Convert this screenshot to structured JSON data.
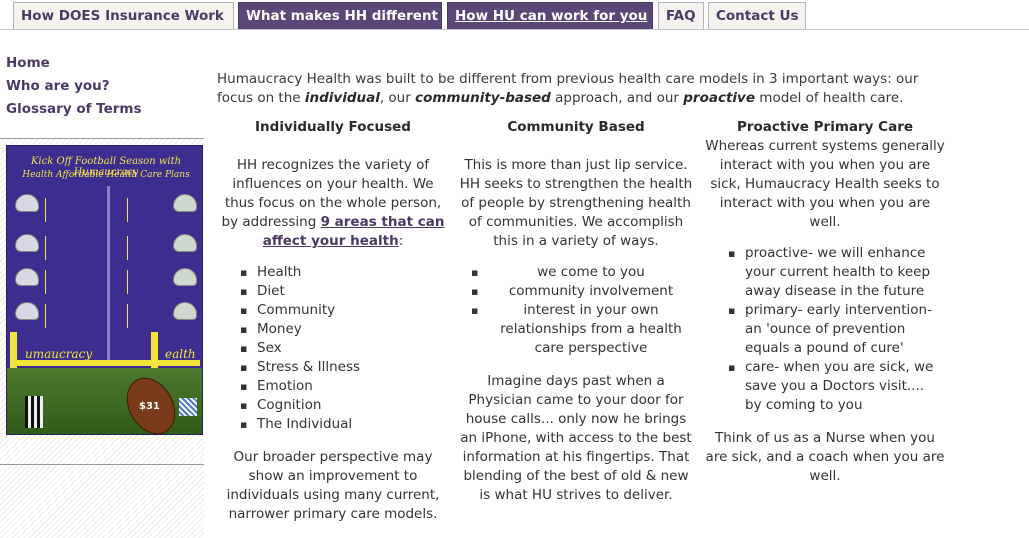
{
  "tabs": [
    {
      "label": "How DOES Insurance Work"
    },
    {
      "label": "What makes HH different"
    },
    {
      "label": "How HU can work for you"
    },
    {
      "label": "FAQ"
    },
    {
      "label": "Contact Us"
    }
  ],
  "sidebar": {
    "items": [
      {
        "label": "Home"
      },
      {
        "label": "Who are you?"
      },
      {
        "label": "Glossary of Terms"
      }
    ]
  },
  "flyer": {
    "headline": "Kick Off Football Season with Humaucracy",
    "subline": "Health Affordable Health Care Plans",
    "brand_left": "umaucracy",
    "brand_right": "ealth",
    "price": "$31"
  },
  "intro": {
    "part1": "Humaucracy Health was built to be different from previous health care models in 3 important ways: our focus on the ",
    "em1": "individual",
    "part2": ", our ",
    "em2": "community-based",
    "part3": " approach, and our ",
    "em3": "proactive",
    "part4": " model of health care."
  },
  "col1": {
    "heading": "Individually Focused",
    "para1_pre": "HH recognizes the variety of influences on your health.  We thus focus on the whole person, by addressing ",
    "link": "9 areas that can affect your health",
    "para1_post": ":",
    "items": [
      "Health",
      "Diet",
      "Community",
      "Money",
      "Sex",
      "Stress & Illness",
      "Emotion",
      "Cognition",
      "The Individual"
    ],
    "para2": "Our broader perspective may show an improvement to individuals using many current, narrower primary care models."
  },
  "col2": {
    "heading": "Community Based",
    "para1": "This is more than just lip service. HH seeks to strengthen the health of people by strengthening health of communities. We accomplish this in a variety of ways.",
    "items": [
      "we come to you",
      "community involvement",
      "interest in your own relationships from a health care perspective"
    ],
    "para2": "Imagine days past when a Physician came to your door for house calls... only now he brings an iPhone, with access to the best information at his fingertips.  That blending of the best of old & new is what HU strives to deliver."
  },
  "col3": {
    "heading": "Proactive Primary Care",
    "para1": "Whereas current systems generally interact with you when you are sick, Humaucracy Health seeks to interact with you when you are well.",
    "items": [
      "proactive- we will enhance your current health to keep away disease in the future",
      "primary- early intervention- an 'ounce of prevention equals a pound of cure'",
      "care- when you are sick, we save you a Doctors visit.... by coming to you"
    ],
    "para2": "Think of us as a Nurse when you are sick, and a coach when you are well."
  }
}
